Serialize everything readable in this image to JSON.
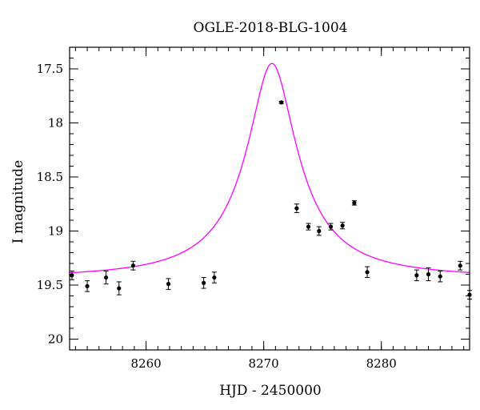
{
  "chart_data": {
    "type": "scatter",
    "title": "OGLE-2018-BLG-1004",
    "xlabel": "HJD - 2450000",
    "ylabel": "I magnitude",
    "xlim": [
      8253.5,
      8287.5
    ],
    "ylim": [
      20.1,
      17.3
    ],
    "y_inverted": true,
    "grid": false,
    "x_ticks": [
      8260,
      8270,
      8280
    ],
    "x_tick_labels": [
      "8260",
      "8270",
      "8280"
    ],
    "x_minor_step": 1,
    "y_ticks": [
      17.5,
      18,
      18.5,
      19,
      19.5,
      20
    ],
    "y_tick_labels": [
      "17.5",
      "18",
      "18.5",
      "19",
      "19.5",
      "20"
    ],
    "y_minor_step": 0.1,
    "model": {
      "color": "#ff00ff",
      "t0": 8270.7,
      "peak_mag": 17.45,
      "baseline_mag": 19.44,
      "width_days": 1.7
    },
    "points": {
      "color": "#000000",
      "x": [
        8253.7,
        8255.0,
        8256.6,
        8257.7,
        8258.9,
        8261.9,
        8264.9,
        8265.8,
        8271.5,
        8272.8,
        8273.8,
        8274.7,
        8275.7,
        8276.7,
        8277.7,
        8278.8,
        8283.0,
        8284.0,
        8285.0,
        8286.7,
        8287.5
      ],
      "y": [
        19.41,
        19.51,
        19.43,
        19.53,
        19.32,
        19.49,
        19.48,
        19.43,
        17.81,
        18.79,
        18.96,
        19.0,
        18.96,
        18.95,
        18.74,
        19.38,
        19.41,
        19.4,
        19.42,
        19.32,
        19.59
      ],
      "err": [
        0.04,
        0.05,
        0.06,
        0.06,
        0.04,
        0.05,
        0.05,
        0.05,
        0.01,
        0.04,
        0.03,
        0.04,
        0.03,
        0.03,
        0.02,
        0.05,
        0.05,
        0.06,
        0.05,
        0.04,
        0.04
      ]
    }
  }
}
